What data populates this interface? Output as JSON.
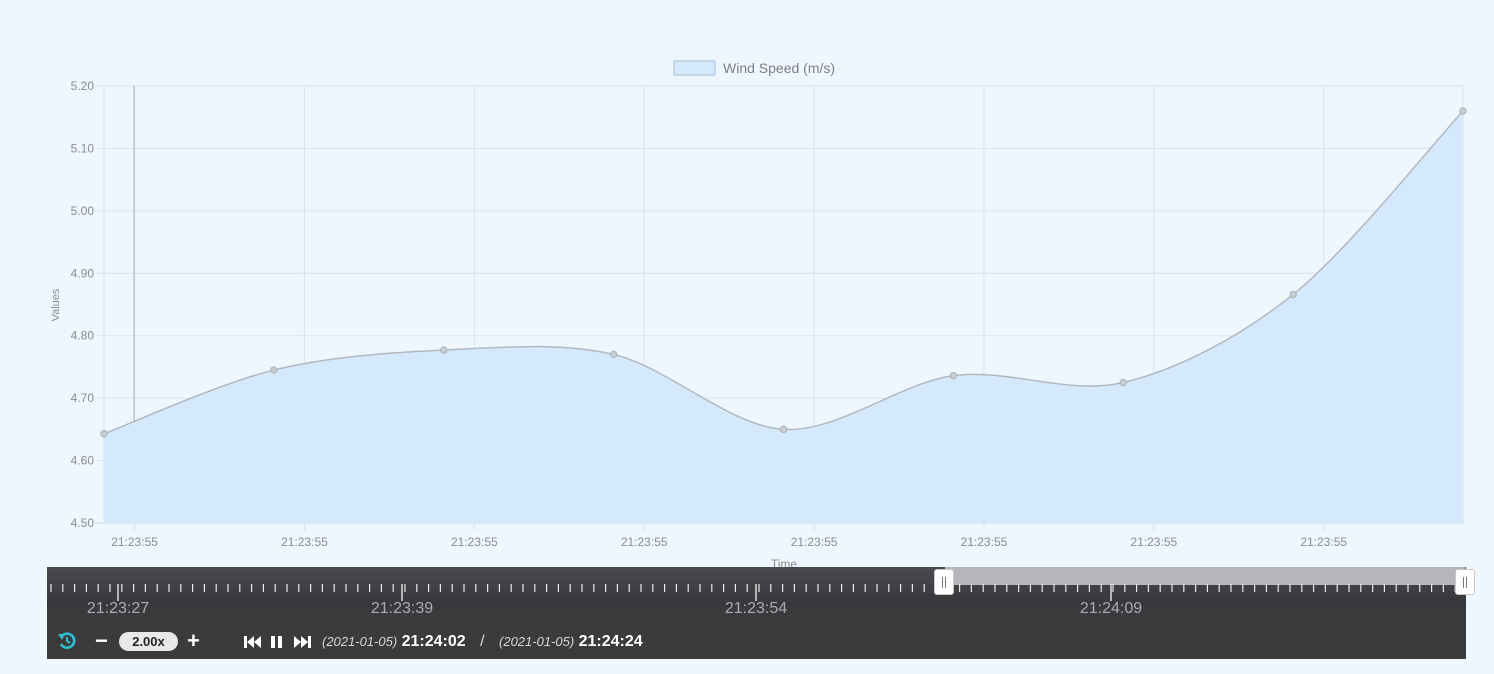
{
  "chart_data": {
    "type": "area",
    "legend": {
      "label": "Wind Speed (m/s)",
      "placement": "top-center"
    },
    "xlabel": "Time",
    "ylabel": "Values",
    "ylim": [
      4.5,
      5.2
    ],
    "yticks": [
      "4.50",
      "4.60",
      "4.70",
      "4.80",
      "4.90",
      "5.00",
      "5.10",
      "5.20"
    ],
    "x_tick_labels": [
      "21:23:55",
      "21:23:55",
      "21:23:55",
      "21:23:55",
      "21:23:55",
      "21:23:55",
      "21:23:55",
      "21:23:55"
    ],
    "series": [
      {
        "name": "Wind Speed (m/s)",
        "values": [
          4.643,
          4.745,
          4.777,
          4.77,
          4.65,
          4.736,
          4.725,
          4.866,
          5.16
        ]
      }
    ],
    "grid": true,
    "colors": {
      "fill": "#d5e9fd",
      "line": "#b3b8be",
      "point": "#c9ced4"
    }
  },
  "timeline": {
    "labels": [
      "21:23:27",
      "21:23:39",
      "21:23:54",
      "21:24:09"
    ],
    "speed": "2.00x",
    "minus": "−",
    "plus": "+",
    "current_date": "(2021-01-05)",
    "current_time": "21:24:02",
    "separator": "/",
    "end_date": "(2021-01-05)",
    "end_time": "21:24:24",
    "colors": {
      "accent": "#2fbfd0",
      "bar": "#3a3b3d"
    }
  }
}
